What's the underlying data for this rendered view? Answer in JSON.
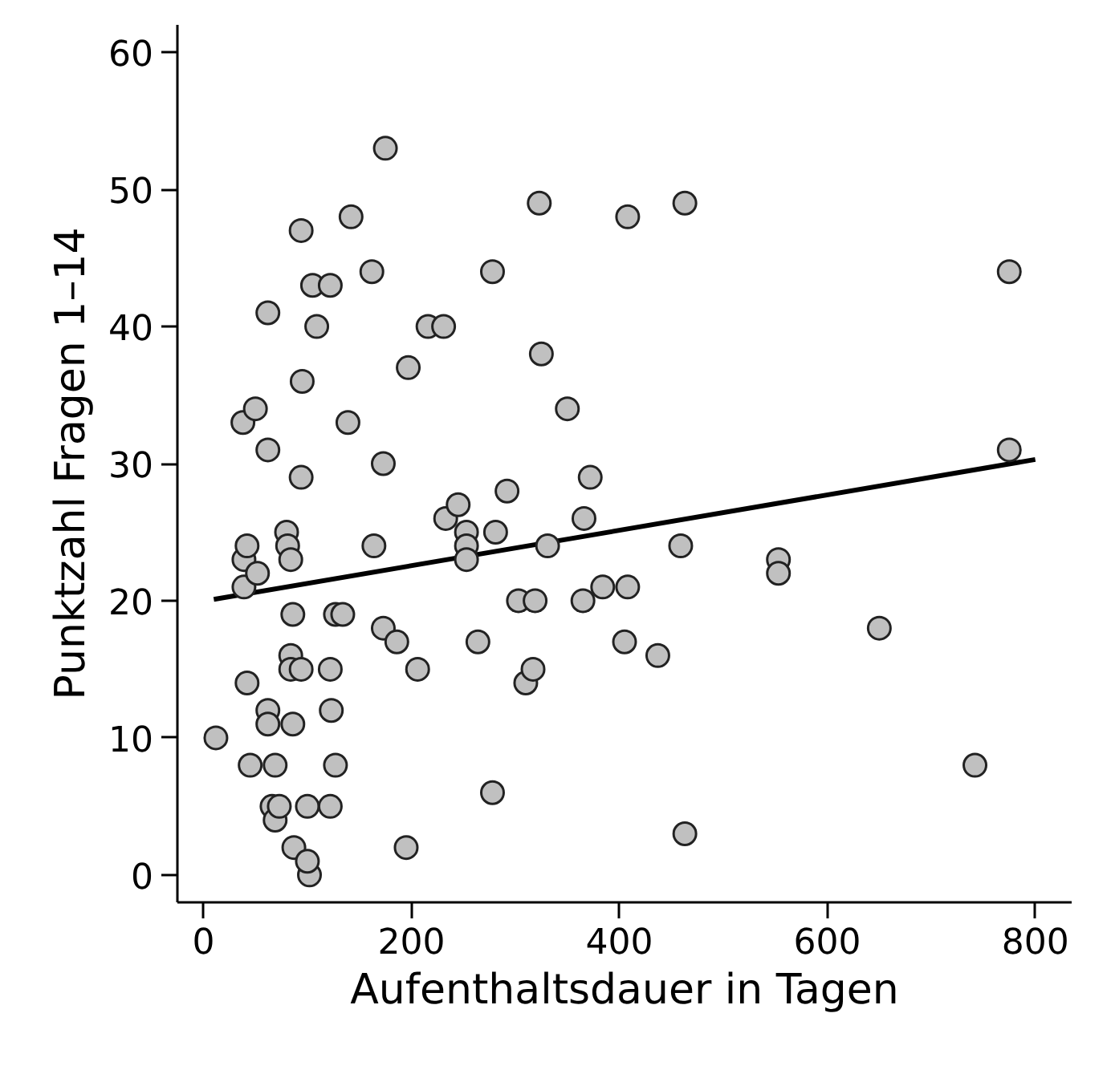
{
  "chart_data": {
    "type": "scatter",
    "xlabel": "Aufenthaltsdauer in Tagen",
    "ylabel": "Punktzahl Fragen 1–14",
    "xlim": [
      -25,
      835
    ],
    "ylim": [
      -2,
      62
    ],
    "xticks": [
      0,
      200,
      400,
      600,
      800
    ],
    "yticks": [
      0,
      10,
      20,
      30,
      40,
      50,
      60
    ],
    "grid": false,
    "series": [
      {
        "marker": "circle",
        "color": "#c0c0c0",
        "x": [
          12,
          38,
          39,
          39,
          42,
          42,
          45,
          50,
          52,
          62,
          62,
          62,
          62,
          66,
          69,
          69,
          73,
          80,
          81,
          84,
          84,
          84,
          86,
          86,
          87,
          94,
          94,
          94,
          95,
          100,
          102,
          100,
          105,
          109,
          122,
          122,
          123,
          122,
          127,
          127,
          134,
          139,
          142,
          162,
          164,
          173,
          175,
          173,
          186,
          197,
          195,
          206,
          216,
          231,
          233,
          245,
          253,
          253,
          253,
          264,
          278,
          278,
          281,
          292,
          303,
          310,
          317,
          319,
          323,
          325,
          331,
          350,
          365,
          366,
          372,
          384,
          405,
          408,
          408,
          437,
          459,
          463,
          463,
          553,
          553,
          650,
          742,
          775,
          775
        ],
        "values": [
          10,
          33,
          23,
          21,
          24,
          14,
          8,
          34,
          22,
          41,
          31,
          12,
          11,
          5,
          4,
          8,
          5,
          25,
          24,
          16,
          23,
          15,
          19,
          11,
          2,
          47,
          15,
          29,
          36,
          5,
          0,
          1,
          43,
          40,
          43,
          15,
          12,
          5,
          8,
          19,
          19,
          33,
          48,
          44,
          24,
          30,
          53,
          18,
          17,
          37,
          2,
          15,
          40,
          40,
          26,
          27,
          25,
          24,
          23,
          17,
          44,
          6,
          25,
          28,
          20,
          14,
          15,
          20,
          49,
          38,
          24,
          34,
          20,
          26,
          29,
          21,
          17,
          21,
          48,
          16,
          24,
          49,
          3,
          23,
          22,
          18,
          8,
          44,
          31
        ]
      },
      {
        "type": "line",
        "color": "#000000",
        "x": [
          10,
          800
        ],
        "values": [
          20.1,
          30.3
        ]
      }
    ]
  }
}
